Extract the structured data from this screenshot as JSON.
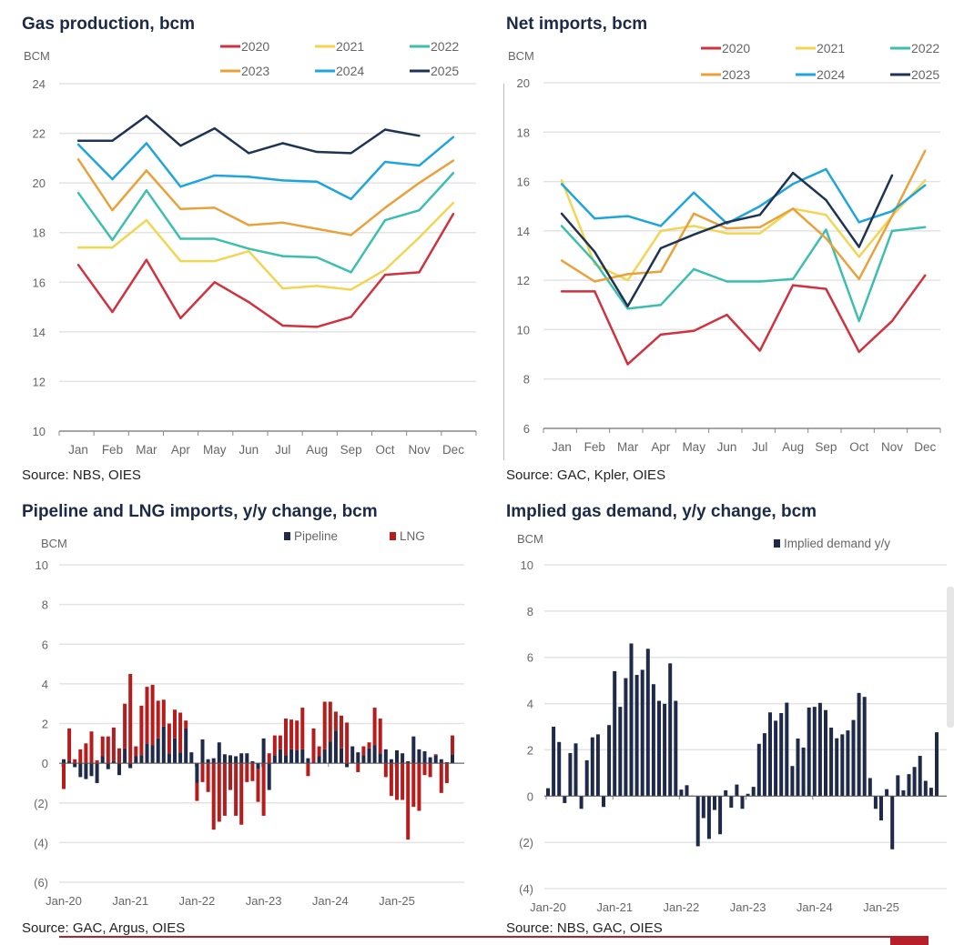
{
  "colors": {
    "2020": "#d0323f",
    "2021": "#f2d552",
    "2022": "#3cbfae",
    "2023": "#e9a23b",
    "2024": "#1ea5dd",
    "2025": "#1f3352",
    "pipeline": "#1f2a4a",
    "lng": "#b71c1c",
    "grid": "#e3e3e3"
  },
  "chart_data": [
    {
      "type": "line",
      "title": "Gas production, bcm",
      "ylabel": "BCM",
      "source": "Source: NBS, OIES",
      "ylim": [
        10,
        24
      ],
      "yticks": [
        "10",
        "12",
        "14",
        "16",
        "18",
        "20",
        "22",
        "24"
      ],
      "categories": [
        "Jan",
        "Feb",
        "Mar",
        "Apr",
        "May",
        "Jun",
        "Jul",
        "Aug",
        "Sep",
        "Oct",
        "Nov",
        "Dec"
      ],
      "grid": true,
      "legend": "top",
      "series": [
        {
          "name": "2020",
          "values": [
            16.7,
            14.8,
            16.9,
            14.55,
            16.0,
            15.2,
            14.25,
            14.2,
            14.6,
            16.3,
            16.4,
            18.75
          ]
        },
        {
          "name": "2021",
          "values": [
            17.4,
            17.4,
            18.5,
            16.85,
            16.85,
            17.25,
            15.75,
            15.85,
            15.7,
            16.5,
            17.8,
            19.2
          ]
        },
        {
          "name": "2022",
          "values": [
            19.6,
            17.7,
            19.7,
            17.75,
            17.75,
            17.35,
            17.05,
            17.0,
            16.4,
            18.5,
            18.9,
            20.4
          ]
        },
        {
          "name": "2023",
          "values": [
            20.95,
            18.9,
            20.5,
            18.95,
            19.0,
            18.3,
            18.4,
            18.15,
            17.9,
            19.0,
            20.0,
            20.9
          ]
        },
        {
          "name": "2024",
          "values": [
            21.55,
            20.15,
            21.6,
            19.85,
            20.3,
            20.25,
            20.1,
            20.05,
            19.35,
            20.85,
            20.7,
            21.85
          ]
        },
        {
          "name": "2025",
          "values": [
            21.7,
            21.7,
            22.7,
            21.5,
            22.2,
            21.2,
            21.6,
            21.25,
            21.2,
            22.15,
            21.9,
            null
          ]
        }
      ]
    },
    {
      "type": "line",
      "title": "Net imports, bcm",
      "ylabel": "BCM",
      "source": "Source: GAC, Kpler, OIES",
      "ylim": [
        6,
        20
      ],
      "yticks": [
        "6",
        "8",
        "10",
        "12",
        "14",
        "16",
        "18",
        "20"
      ],
      "categories": [
        "Jan",
        "Feb",
        "Mar",
        "Apr",
        "May",
        "Jun",
        "Jul",
        "Aug",
        "Sep",
        "Oct",
        "Nov",
        "Dec"
      ],
      "grid": true,
      "legend": "top",
      "series": [
        {
          "name": "2020",
          "values": [
            11.55,
            11.55,
            8.6,
            9.8,
            9.95,
            10.6,
            9.15,
            11.8,
            11.65,
            9.1,
            10.35,
            12.2
          ]
        },
        {
          "name": "2021",
          "values": [
            16.05,
            12.65,
            12.0,
            14.0,
            14.2,
            13.9,
            13.9,
            14.9,
            14.65,
            12.95,
            14.6,
            16.05
          ]
        },
        {
          "name": "2022",
          "values": [
            14.2,
            12.75,
            10.85,
            11.0,
            12.45,
            11.95,
            11.95,
            12.05,
            14.05,
            10.35,
            14.0,
            14.15
          ]
        },
        {
          "name": "2023",
          "values": [
            12.8,
            11.95,
            12.25,
            12.35,
            14.7,
            14.1,
            14.15,
            14.9,
            13.7,
            12.05,
            14.6,
            17.25
          ]
        },
        {
          "name": "2024",
          "values": [
            15.9,
            14.5,
            14.6,
            14.2,
            15.55,
            14.3,
            15.0,
            15.9,
            16.5,
            14.35,
            14.8,
            15.85
          ]
        },
        {
          "name": "2025",
          "values": [
            14.7,
            13.15,
            10.95,
            13.3,
            13.85,
            14.35,
            14.65,
            16.35,
            15.25,
            13.35,
            16.25,
            null
          ]
        }
      ]
    },
    {
      "type": "bar",
      "stacked": true,
      "title": "Pipeline and LNG imports, y/y change, bcm",
      "ylabel": "BCM",
      "source": "Source: GAC, Argus, OIES",
      "ylim": [
        -6,
        10
      ],
      "yticks": [
        "(6)",
        "(4)",
        "(2)",
        "0",
        "2",
        "4",
        "6",
        "8",
        "10"
      ],
      "xticks": [
        "Jan-20",
        "Jan-21",
        "Jan-22",
        "Jan-23",
        "Jan-24",
        "Jan-25"
      ],
      "x_start": "Jan-20",
      "x_end": "Nov-25",
      "frequency": "monthly",
      "grid": true,
      "legend": "top",
      "series": [
        {
          "name": "Pipeline",
          "values": [
            0.2,
            0.1,
            -0.2,
            -0.7,
            -0.8,
            -0.65,
            -1.0,
            0.35,
            -0.3,
            0.1,
            -0.6,
            0.75,
            -0.25,
            0.35,
            0.4,
            1.0,
            0.9,
            1.25,
            1.85,
            0.5,
            1.25,
            0.55,
            1.75,
            0.55,
            -1.0,
            1.2,
            0.2,
            0.25,
            1.05,
            0.45,
            0.4,
            0.35,
            0.5,
            0.5,
            0.1,
            -0.3,
            1.25,
            -1.35,
            0.4,
            0.7,
            0.4,
            0.7,
            0.65,
            0.7,
            0.25,
            0.05,
            0.35,
            0.7,
            1.1,
            1.65,
            0.75,
            -0.2,
            0.85,
            0.55,
            0.4,
            0.75,
            0.9,
            0.5,
            0.7,
            0.2,
            0.65,
            0.5,
            0.1,
            1.35,
            0.7,
            0.6,
            0.3,
            0.4,
            0.2,
            0.05,
            0.45
          ]
        },
        {
          "name": "LNG",
          "values": [
            -1.3,
            1.65,
            0.2,
            0.7,
            1.0,
            1.6,
            0.15,
            1.0,
            1.35,
            1.7,
            0.75,
            2.25,
            4.5,
            0.5,
            2.5,
            2.85,
            3.05,
            1.9,
            1.35,
            1.5,
            1.45,
            2.0,
            0.4,
            0.0,
            -0.9,
            -0.95,
            -1.45,
            -3.35,
            -2.95,
            -2.65,
            -1.35,
            -2.65,
            -3.1,
            -0.95,
            -0.9,
            -1.65,
            -2.65,
            0.5,
            1.0,
            0.7,
            1.85,
            1.5,
            1.5,
            2.1,
            -0.65,
            1.7,
            0.5,
            2.4,
            2.0,
            0.95,
            1.65,
            2.05,
            0.0,
            -0.45,
            0.45,
            0.3,
            1.9,
            1.75,
            -0.7,
            -1.65,
            -1.85,
            -1.85,
            -3.85,
            -2.2,
            -2.4,
            -0.6,
            -0.7,
            0.05,
            -1.5,
            -1.0,
            0.95
          ]
        }
      ]
    },
    {
      "type": "bar",
      "title": "Implied gas demand, y/y change, bcm",
      "ylabel": "BCM",
      "source": "Source: NBS, GAC, OIES",
      "ylim": [
        -4,
        10
      ],
      "yticks": [
        "(4)",
        "(2)",
        "0",
        "2",
        "4",
        "6",
        "8",
        "10"
      ],
      "xticks": [
        "Jan-20",
        "Jan-21",
        "Jan-22",
        "Jan-23",
        "Jan-24",
        "Jan-25"
      ],
      "x_start": "Jan-20",
      "x_end": "Nov-25",
      "frequency": "monthly",
      "grid": true,
      "legend": "top",
      "series": [
        {
          "name": "Implied demand y/y",
          "values": [
            0.34,
            3.0,
            2.34,
            -0.3,
            1.86,
            2.28,
            -0.55,
            1.55,
            2.54,
            2.67,
            -0.47,
            3.07,
            5.4,
            3.86,
            5.1,
            6.6,
            5.24,
            5.46,
            6.37,
            4.84,
            4.12,
            3.99,
            5.74,
            4.12,
            0.28,
            0.47,
            0.02,
            -2.17,
            -0.95,
            -1.85,
            -0.6,
            -1.65,
            0.25,
            -0.5,
            0.5,
            -0.55,
            0.1,
            0.4,
            2.26,
            2.72,
            3.62,
            3.26,
            3.59,
            4.04,
            1.3,
            2.49,
            2.1,
            3.83,
            3.86,
            4.03,
            3.72,
            2.96,
            2.5,
            2.67,
            2.84,
            3.29,
            4.46,
            4.29,
            0.78,
            -0.55,
            -1.05,
            0.3,
            -2.3,
            0.9,
            0.25,
            0.95,
            1.26,
            1.74,
            0.66,
            0.36,
            2.76
          ]
        }
      ]
    }
  ]
}
